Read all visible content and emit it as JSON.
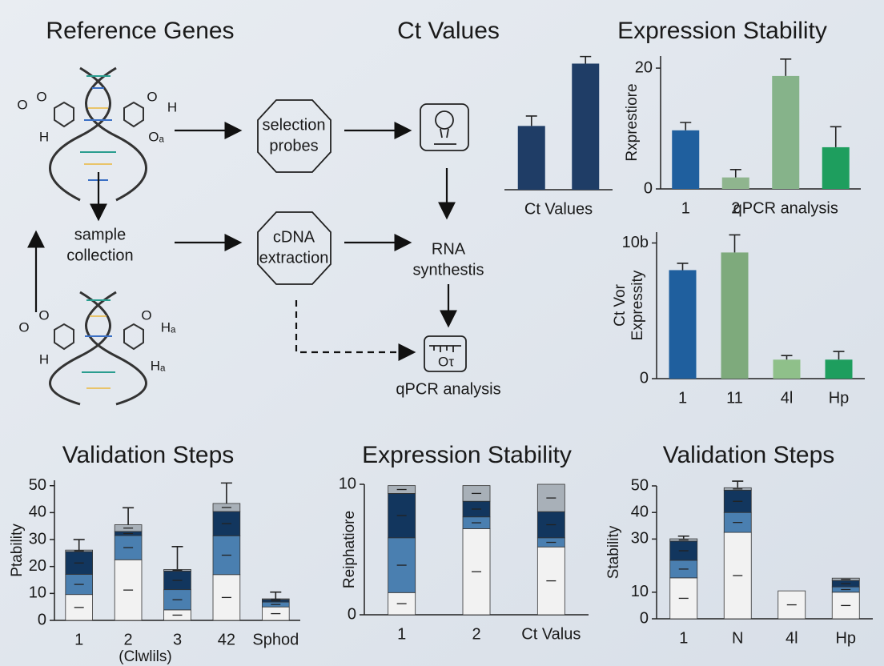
{
  "diagram": {
    "title": "Reference Genes",
    "nodes": [
      {
        "lines": [
          "selection",
          "probes"
        ]
      },
      {
        "lines": [
          "cDNA",
          "extraction"
        ]
      },
      {
        "lines": [
          "sample",
          "collection"
        ]
      },
      {
        "lines": [
          "RNA",
          "synthestis"
        ]
      },
      {
        "lines": [
          "qPCR analysis"
        ]
      },
      {
        "lines": [
          "Oτ"
        ]
      }
    ],
    "dna_labels": [
      "O",
      "O",
      "H",
      "O",
      "H",
      "Oₐ",
      "O",
      "O",
      "H",
      "O",
      "Hₐ",
      "Hₐ"
    ]
  },
  "chart_data": [
    {
      "type": "bar",
      "title": "Ct Values",
      "xlabel": "Ct Values",
      "categories": [
        null,
        null
      ],
      "values": [
        45,
        89
      ],
      "errors": [
        7,
        5
      ],
      "colors": [
        "#1f3d66",
        "#1f3d66"
      ],
      "ylim": [
        0,
        100
      ]
    },
    {
      "type": "bar",
      "title": "Expression Stability",
      "ylabel": [
        "Rxprestiore"
      ],
      "categories": [
        "1",
        "2",
        "qPCR analysis",
        null
      ],
      "values": [
        9.7,
        1.9,
        18.7,
        6.9
      ],
      "errors": [
        1.3,
        1.3,
        2.8,
        3.4
      ],
      "colors": [
        "#1f5f9e",
        "#8fb58e",
        "#86b38a",
        "#1e9e5e"
      ],
      "ylim": [
        0,
        22
      ],
      "yticks": [
        0,
        20
      ]
    },
    {
      "type": "bar",
      "ylabel": [
        "Ct Vor",
        "Expressity"
      ],
      "categories": [
        "1",
        "11",
        "4l",
        "Hp"
      ],
      "values": [
        8.0,
        9.3,
        1.4,
        1.4
      ],
      "errors": [
        0.5,
        1.3,
        0.3,
        0.6
      ],
      "colors": [
        "#1f5f9e",
        "#7eaa7c",
        "#8fc08a",
        "#1e9e5e"
      ],
      "ylim": [
        0,
        10.8
      ],
      "yticks": [
        0,
        {
          "value": 10,
          "label": "10b"
        }
      ]
    },
    {
      "type": "stacked",
      "title": "Validation Steps",
      "ylabel": [
        "Ptability"
      ],
      "xlabel": "(Clwlils)",
      "categories": [
        "1",
        "2",
        "3",
        "42",
        "Sphod"
      ],
      "series": [
        {
          "color": "#f2f2f2",
          "values": [
            9.6,
            22.5,
            3.9,
            17,
            5
          ]
        },
        {
          "color": "#4a7fb0",
          "values": [
            7.5,
            9,
            7.5,
            14.4,
            1.8
          ]
        },
        {
          "color": "#12365e",
          "values": [
            8.4,
            1.5,
            6.9,
            9,
            0.9
          ]
        },
        {
          "color": "#a8b0b8",
          "values": [
            0.6,
            2.5,
            0.6,
            3,
            0.3
          ]
        }
      ],
      "errors": [
        3.9,
        6.3,
        8.5,
        7.6,
        2.5
      ],
      "ylim": [
        0,
        52
      ],
      "yticks": [
        0,
        10,
        20,
        30,
        40,
        50
      ]
    },
    {
      "type": "stacked",
      "title": "Expression Stability",
      "ylabel": [
        "Reiphatiore"
      ],
      "categories": [
        "1",
        "2",
        "Ct Valus"
      ],
      "series": [
        {
          "color": "#f2f2f2",
          "values": [
            1.7,
            6.6,
            5.2
          ]
        },
        {
          "color": "#4a7fb0",
          "values": [
            4.2,
            0.9,
            0.7
          ]
        },
        {
          "color": "#12365e",
          "values": [
            3.4,
            1.2,
            2.0
          ]
        },
        {
          "color": "#a8b0b8",
          "values": [
            0.6,
            1.2,
            2.1
          ]
        }
      ],
      "ylim": [
        0,
        10
      ],
      "yticks": [
        0,
        10
      ]
    },
    {
      "type": "stacked",
      "title": "Validation Steps",
      "ylabel": [
        "Stability"
      ],
      "categories": [
        "1",
        "N",
        "4l",
        "Hp"
      ],
      "series": [
        {
          "color": "#f2f2f2",
          "values": [
            15.4,
            32.5,
            10.5,
            10
          ]
        },
        {
          "color": "#4a7fb0",
          "values": [
            6.6,
            7.5,
            0,
            2
          ]
        },
        {
          "color": "#12365e",
          "values": [
            7.2,
            8.4,
            0,
            2.4
          ]
        },
        {
          "color": "#a8b0b8",
          "values": [
            0.9,
            0.9,
            0,
            0.9
          ]
        }
      ],
      "errors": [
        1,
        2.5,
        null,
        null
      ],
      "ylim": [
        0,
        50
      ],
      "yticks": [
        0,
        10,
        30,
        40,
        50
      ]
    }
  ]
}
